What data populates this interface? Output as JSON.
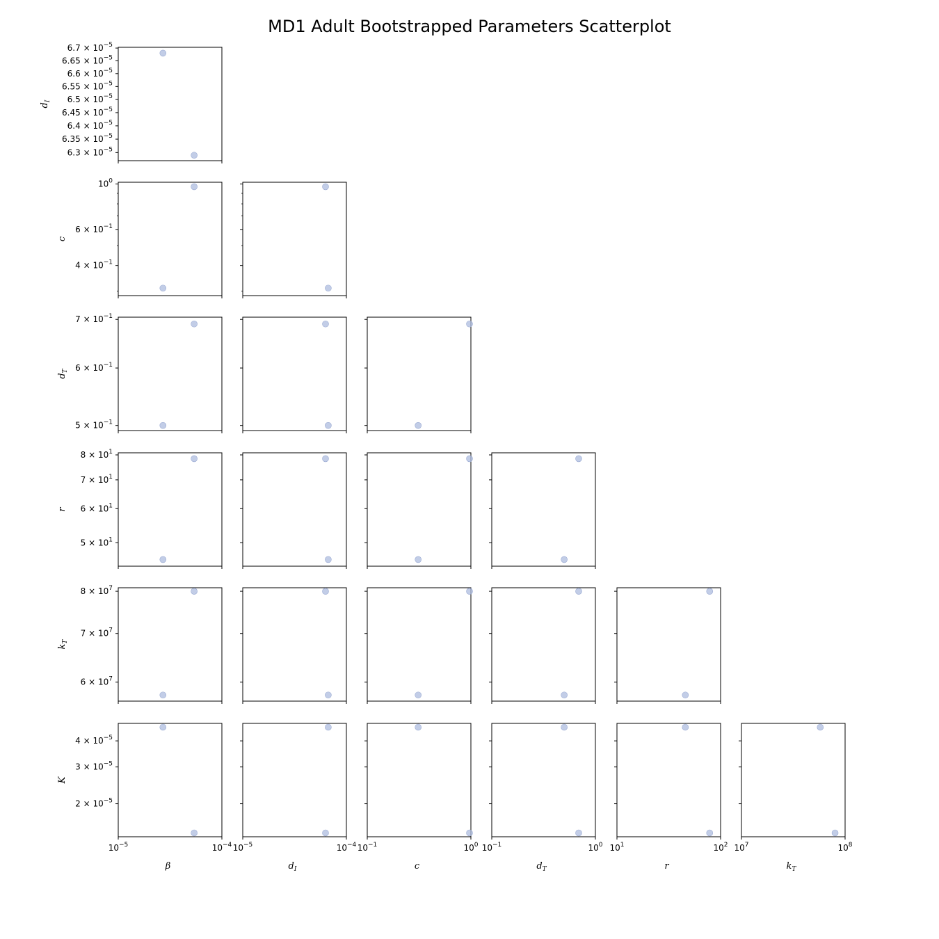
{
  "chart_data": {
    "type": "scatter",
    "title": "MD1 Adult Bootstrapped Parameters Scatterplot",
    "point_color": "#aebcdf",
    "params": [
      {
        "key": "beta",
        "symbol": "β",
        "sub": ""
      },
      {
        "key": "dI",
        "symbol": "d",
        "sub": "I"
      },
      {
        "key": "c",
        "symbol": "c",
        "sub": ""
      },
      {
        "key": "dT",
        "symbol": "d",
        "sub": "T"
      },
      {
        "key": "r",
        "symbol": "r",
        "sub": ""
      },
      {
        "key": "kT",
        "symbol": "k",
        "sub": "T"
      },
      {
        "key": "K",
        "symbol": "K",
        "sub": ""
      }
    ],
    "samples": [
      {
        "beta": 2.7e-05,
        "dI": 6.68e-05,
        "c": 0.31,
        "dT": 0.5,
        "r": 45.7,
        "kT": 57600000.0,
        "K": 4.65e-05
      },
      {
        "beta": 5.4e-05,
        "dI": 6.29e-05,
        "c": 0.97,
        "dT": 0.69,
        "r": 78.4,
        "kT": 80000000.0,
        "K": 1.45e-05
      }
    ],
    "x_axes": [
      {
        "param": "beta",
        "scale": "log",
        "range": [
          1e-05,
          0.0001
        ],
        "ticks": [
          "10^-5",
          "10^-4"
        ]
      },
      {
        "param": "dI",
        "scale": "log",
        "range": [
          1e-05,
          0.0001
        ],
        "ticks": [
          "10^-5",
          "10^-4"
        ]
      },
      {
        "param": "c",
        "scale": "log",
        "range": [
          0.1,
          1
        ],
        "ticks": [
          "10^-1",
          "10^0"
        ]
      },
      {
        "param": "dT",
        "scale": "log",
        "range": [
          0.1,
          1
        ],
        "ticks": [
          "10^-1",
          "10^0"
        ]
      },
      {
        "param": "r",
        "scale": "log",
        "range": [
          10,
          100
        ],
        "ticks": [
          "10^1",
          "10^2"
        ]
      },
      {
        "param": "kT",
        "scale": "log",
        "range": [
          10000000.0,
          100000000.0
        ],
        "ticks": [
          "10^7",
          "10^8"
        ]
      }
    ],
    "y_axes": [
      {
        "param": "dI",
        "scale": "log",
        "range": [
          6.27e-05,
          6.703e-05
        ],
        "ticks": [
          {
            "value": 6.7e-05,
            "label": "6.7 × 10^-5"
          },
          {
            "value": 6.65e-05,
            "label": "6.65 × 10^-5"
          },
          {
            "value": 6.6e-05,
            "label": "6.6 × 10^-5"
          },
          {
            "value": 6.55e-05,
            "label": "6.55 × 10^-5"
          },
          {
            "value": 6.5e-05,
            "label": "6.5 × 10^-5"
          },
          {
            "value": 6.45e-05,
            "label": "6.45 × 10^-5"
          },
          {
            "value": 6.4e-05,
            "label": "6.4 × 10^-5"
          },
          {
            "value": 6.35e-05,
            "label": "6.35 × 10^-5"
          },
          {
            "value": 6.3e-05,
            "label": "6.3 × 10^-5"
          }
        ]
      },
      {
        "param": "c",
        "scale": "log",
        "range": [
          0.285,
          1.02
        ],
        "ticks": [
          {
            "value": 1.0,
            "label": "10^0"
          },
          {
            "value": 0.6,
            "label": "6 × 10^-1"
          },
          {
            "value": 0.4,
            "label": "4 × 10^-1"
          }
        ],
        "minor": [
          0.9,
          0.8,
          0.7,
          0.5,
          0.3
        ]
      },
      {
        "param": "dT",
        "scale": "log",
        "range": [
          0.492,
          0.705
        ],
        "ticks": [
          {
            "value": 0.7,
            "label": "7 × 10^-1"
          },
          {
            "value": 0.6,
            "label": "6 × 10^-1"
          },
          {
            "value": 0.5,
            "label": "5 × 10^-1"
          }
        ]
      },
      {
        "param": "r",
        "scale": "log",
        "range": [
          44.1,
          80.9
        ],
        "ticks": [
          {
            "value": 80,
            "label": "8 × 10^1"
          },
          {
            "value": 70,
            "label": "7 × 10^1"
          },
          {
            "value": 60,
            "label": "6 × 10^1"
          },
          {
            "value": 50,
            "label": "5 × 10^1"
          }
        ]
      },
      {
        "param": "kT",
        "scale": "log",
        "range": [
          56500000.0,
          80900000.0
        ],
        "ticks": [
          {
            "value": 80000000.0,
            "label": "8 × 10^7"
          },
          {
            "value": 70000000.0,
            "label": "7 × 10^7"
          },
          {
            "value": 60000000.0,
            "label": "6 × 10^7"
          }
        ]
      },
      {
        "param": "K",
        "scale": "log",
        "range": [
          1.39e-05,
          4.85e-05
        ],
        "ticks": [
          {
            "value": 4e-05,
            "label": "4 × 10^-5"
          },
          {
            "value": 3e-05,
            "label": "3 × 10^-5"
          },
          {
            "value": 2e-05,
            "label": "2 × 10^-5"
          }
        ]
      }
    ],
    "grid": false,
    "legend": "none"
  }
}
